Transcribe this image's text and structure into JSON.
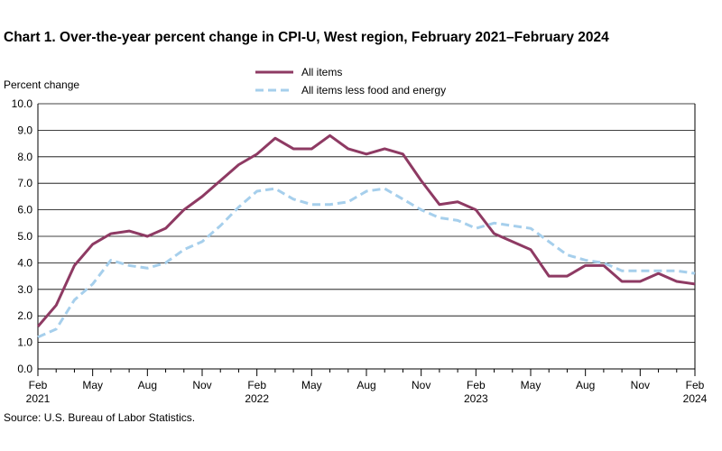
{
  "chart_data": {
    "type": "line",
    "title": "Chart 1. Over-the-year percent change in CPI-U, West region, February 2021–February 2024",
    "y_label": "Percent change",
    "source": "Source: U.S. Bureau of Labor Statistics.",
    "categories": [
      "Feb 2021",
      null,
      null,
      "May",
      null,
      null,
      "Aug",
      null,
      null,
      "Nov",
      null,
      null,
      "Feb 2022",
      null,
      null,
      "May",
      null,
      null,
      "Aug",
      null,
      null,
      "Nov",
      null,
      null,
      "Feb 2023",
      null,
      null,
      "May",
      null,
      null,
      "Aug",
      null,
      null,
      "Nov",
      null,
      null,
      "Feb 2024"
    ],
    "series": [
      {
        "name": "All items",
        "color": "#8e3a63",
        "dash": false,
        "values": [
          1.6,
          2.4,
          3.9,
          4.7,
          5.1,
          5.2,
          5.0,
          5.3,
          6.0,
          6.5,
          7.1,
          7.7,
          8.1,
          8.7,
          8.3,
          8.3,
          8.8,
          8.3,
          8.1,
          8.3,
          8.1,
          7.1,
          6.2,
          6.3,
          6.0,
          5.1,
          4.8,
          4.5,
          3.5,
          3.5,
          3.9,
          3.9,
          3.3,
          3.3,
          3.6,
          3.3,
          3.2
        ]
      },
      {
        "name": "All items less food and energy",
        "color": "#a6cfec",
        "dash": true,
        "values": [
          1.2,
          1.5,
          2.6,
          3.2,
          4.1,
          3.9,
          3.8,
          4.0,
          4.5,
          4.8,
          5.4,
          6.1,
          6.7,
          6.8,
          6.4,
          6.2,
          6.2,
          6.3,
          6.7,
          6.8,
          6.4,
          6.0,
          5.7,
          5.6,
          5.3,
          5.5,
          5.4,
          5.3,
          4.8,
          4.3,
          4.1,
          4.0,
          3.7,
          3.7,
          3.7,
          3.7,
          3.6
        ]
      }
    ],
    "ylim": [
      0,
      10
    ],
    "yticks": [
      {
        "value": 0,
        "label": "0.0"
      },
      {
        "value": 1,
        "label": "1.0"
      },
      {
        "value": 2,
        "label": "2.0"
      },
      {
        "value": 3,
        "label": "3.0"
      },
      {
        "value": 4,
        "label": "4.0"
      },
      {
        "value": 5,
        "label": "5.0"
      },
      {
        "value": 6,
        "label": "6.0"
      },
      {
        "value": 7,
        "label": "7.0"
      },
      {
        "value": 8,
        "label": "8.0"
      },
      {
        "value": 9,
        "label": "9.0"
      },
      {
        "value": 10,
        "label": "10.0"
      }
    ],
    "grid": true
  }
}
